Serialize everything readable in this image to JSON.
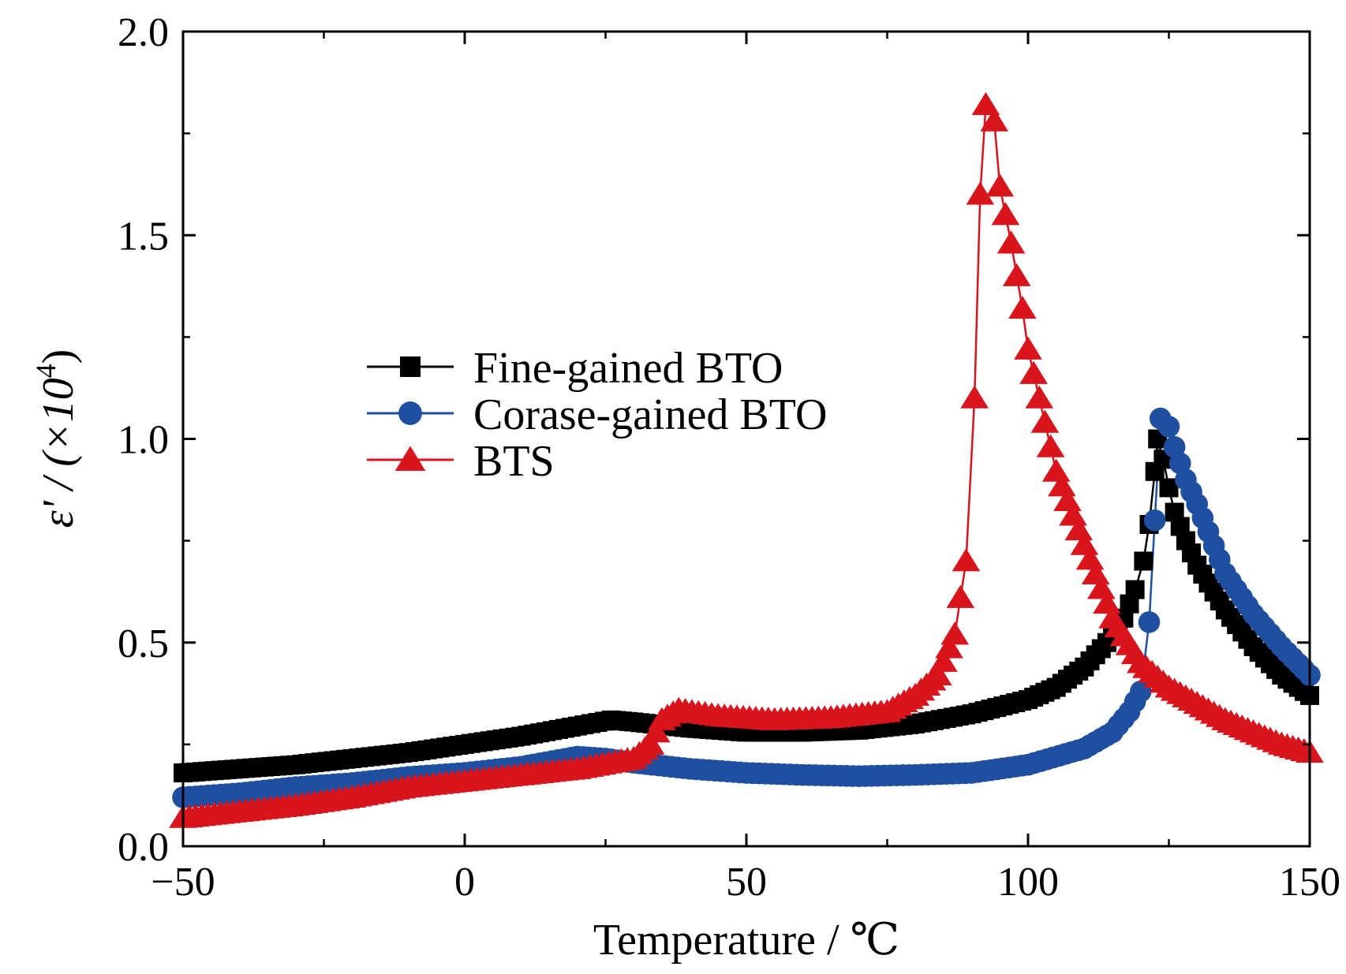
{
  "chart_data": {
    "type": "line",
    "title": "",
    "xlabel": "Temperature / ℃",
    "ylabel": "ε' / (×10",
    "ylabel_sup": "4",
    "ylabel_close": ")",
    "xlim": [
      -50,
      150
    ],
    "ylim": [
      0.0,
      2.0
    ],
    "x_ticks": [
      -50,
      0,
      50,
      100,
      150
    ],
    "x_tick_labels": [
      "−50",
      "0",
      "50",
      "100",
      "150"
    ],
    "y_ticks": [
      0.0,
      0.5,
      1.0,
      1.5,
      2.0
    ],
    "y_tick_labels": [
      "0.0",
      "0.5",
      "1.0",
      "1.5",
      "2.0"
    ],
    "grid": false,
    "legend_position": "center-left",
    "series": [
      {
        "name": "Fine-gained BTO",
        "color": "#000000",
        "marker": "square",
        "points": [
          [
            -50,
            0.18
          ],
          [
            -40,
            0.19
          ],
          [
            -30,
            0.2
          ],
          [
            -20,
            0.215
          ],
          [
            -10,
            0.23
          ],
          [
            0,
            0.25
          ],
          [
            10,
            0.27
          ],
          [
            20,
            0.295
          ],
          [
            26,
            0.31
          ],
          [
            30,
            0.305
          ],
          [
            40,
            0.29
          ],
          [
            50,
            0.28
          ],
          [
            60,
            0.28
          ],
          [
            70,
            0.285
          ],
          [
            80,
            0.3
          ],
          [
            90,
            0.325
          ],
          [
            100,
            0.36
          ],
          [
            105,
            0.39
          ],
          [
            110,
            0.44
          ],
          [
            114,
            0.5
          ],
          [
            117,
            0.56
          ],
          [
            119,
            0.63
          ],
          [
            120.5,
            0.7
          ],
          [
            121.5,
            0.79
          ],
          [
            122.5,
            0.92
          ],
          [
            123,
            1.0
          ],
          [
            124,
            0.95
          ],
          [
            125,
            0.88
          ],
          [
            126,
            0.82
          ],
          [
            128,
            0.75
          ],
          [
            130,
            0.69
          ],
          [
            135,
            0.58
          ],
          [
            140,
            0.49
          ],
          [
            145,
            0.42
          ],
          [
            150,
            0.37
          ]
        ]
      },
      {
        "name": "Corase-gained BTO",
        "color": "#1f4fa0",
        "marker": "circle",
        "points": [
          [
            -50,
            0.12
          ],
          [
            -40,
            0.13
          ],
          [
            -30,
            0.145
          ],
          [
            -20,
            0.155
          ],
          [
            -10,
            0.17
          ],
          [
            0,
            0.18
          ],
          [
            10,
            0.195
          ],
          [
            20,
            0.22
          ],
          [
            25,
            0.215
          ],
          [
            30,
            0.205
          ],
          [
            40,
            0.19
          ],
          [
            50,
            0.18
          ],
          [
            60,
            0.175
          ],
          [
            70,
            0.172
          ],
          [
            80,
            0.175
          ],
          [
            90,
            0.18
          ],
          [
            100,
            0.2
          ],
          [
            110,
            0.24
          ],
          [
            115,
            0.28
          ],
          [
            118,
            0.33
          ],
          [
            120,
            0.38
          ],
          [
            121.5,
            0.55
          ],
          [
            122.5,
            0.8
          ],
          [
            123.5,
            1.05
          ],
          [
            125,
            1.03
          ],
          [
            126,
            0.98
          ],
          [
            128,
            0.9
          ],
          [
            130,
            0.84
          ],
          [
            135,
            0.67
          ],
          [
            140,
            0.57
          ],
          [
            145,
            0.49
          ],
          [
            150,
            0.42
          ]
        ]
      },
      {
        "name": "BTS",
        "color": "#d8141c",
        "marker": "triangle",
        "points": [
          [
            -50,
            0.07
          ],
          [
            -40,
            0.085
          ],
          [
            -30,
            0.1
          ],
          [
            -20,
            0.12
          ],
          [
            -10,
            0.145
          ],
          [
            0,
            0.16
          ],
          [
            10,
            0.175
          ],
          [
            20,
            0.19
          ],
          [
            30,
            0.215
          ],
          [
            33,
            0.25
          ],
          [
            35,
            0.31
          ],
          [
            38,
            0.335
          ],
          [
            45,
            0.32
          ],
          [
            55,
            0.31
          ],
          [
            65,
            0.315
          ],
          [
            75,
            0.33
          ],
          [
            80,
            0.37
          ],
          [
            84,
            0.42
          ],
          [
            87,
            0.52
          ],
          [
            89,
            0.7
          ],
          [
            90.5,
            1.1
          ],
          [
            91.5,
            1.6
          ],
          [
            92.5,
            1.82
          ],
          [
            94,
            1.78
          ],
          [
            95,
            1.62
          ],
          [
            97,
            1.48
          ],
          [
            99,
            1.32
          ],
          [
            100,
            1.22
          ],
          [
            103,
            1.04
          ],
          [
            105,
            0.92
          ],
          [
            110,
            0.74
          ],
          [
            115,
            0.56
          ],
          [
            120,
            0.45
          ],
          [
            125,
            0.39
          ],
          [
            130,
            0.35
          ],
          [
            135,
            0.31
          ],
          [
            140,
            0.28
          ],
          [
            145,
            0.25
          ],
          [
            150,
            0.23
          ]
        ]
      }
    ]
  }
}
